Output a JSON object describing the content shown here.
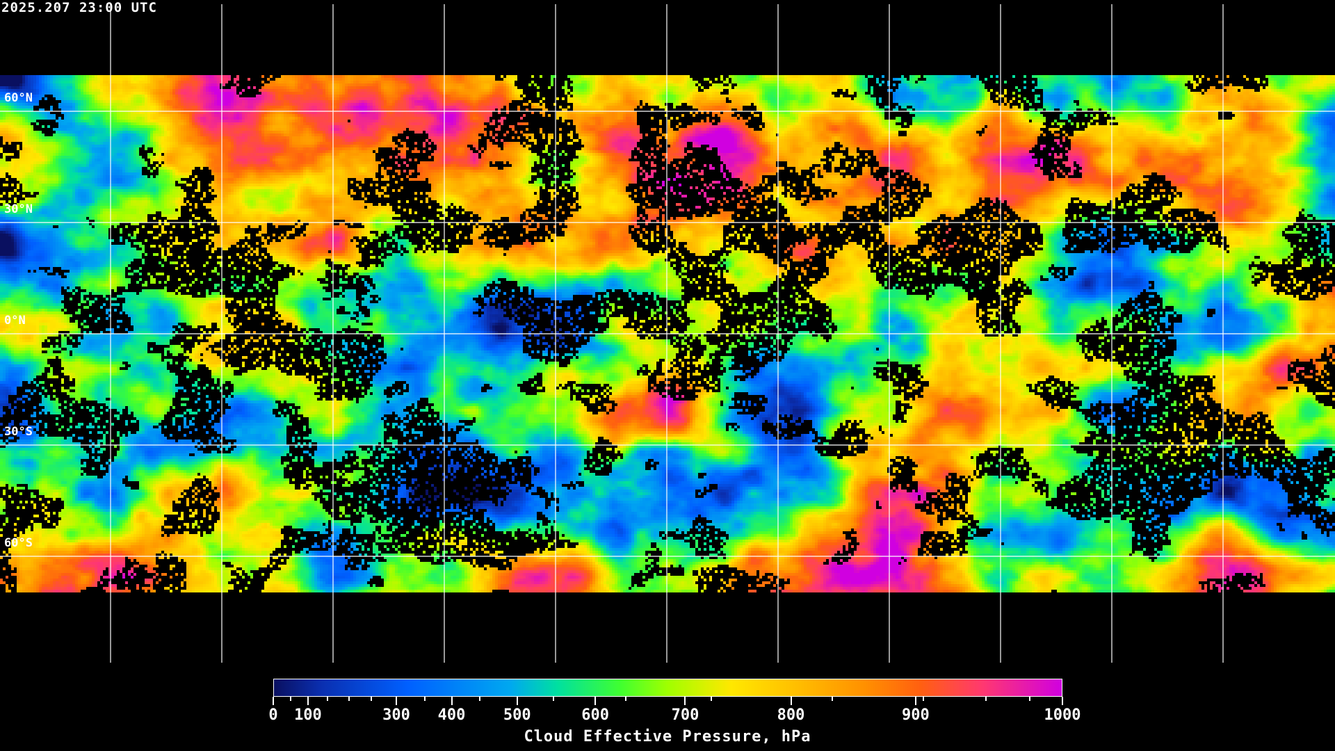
{
  "title": "2025.207 23:00 UTC",
  "latitude_labels": [
    "60°N",
    "30°N",
    "0°N",
    "30°S",
    "60°S"
  ],
  "colorbar": {
    "title": "Cloud Effective Pressure, hPa",
    "range": [
      0,
      1000
    ],
    "tick_labels": [
      "0",
      "100",
      "300",
      "400",
      "500",
      "600",
      "700",
      "800",
      "900",
      "1000"
    ],
    "colors": [
      "#0a1060",
      "#0a2fb0",
      "#0060ff",
      "#00a8f0",
      "#00e0a0",
      "#40ff30",
      "#a0ff00",
      "#ffe800",
      "#ffc000",
      "#ff9000",
      "#ff6010",
      "#ff3870",
      "#d000e0"
    ]
  },
  "map": {
    "projection": "equirectangular",
    "graticule_spacing_deg": 30,
    "no_data_color": "#000000",
    "coastline_color": "#ffffff"
  }
}
